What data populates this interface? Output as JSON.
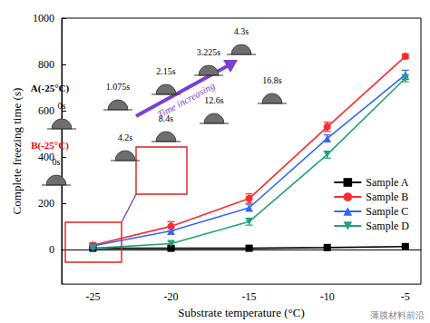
{
  "chart_data": {
    "type": "line",
    "x_label": "Substrate temperature (°C)",
    "y_label": "Complete freezing time (s)",
    "x": [
      -25,
      -20,
      -15,
      -10,
      -5
    ],
    "xlim": [
      -27,
      -4
    ],
    "xticks": [
      -25,
      -20,
      -15,
      -10,
      -5
    ],
    "ylim": [
      -150,
      1000
    ],
    "yticks": [
      0,
      200,
      400,
      600,
      800,
      1000
    ],
    "grid": false,
    "legend": "right",
    "series": [
      {
        "name": "Sample A",
        "color": "#000000",
        "marker": "square",
        "values": [
          5,
          5,
          5,
          8,
          12
        ],
        "errors": [
          2,
          2,
          2,
          2,
          2
        ]
      },
      {
        "name": "Sample B",
        "color": "#ff2a2a",
        "marker": "circle",
        "values": [
          18,
          100,
          220,
          530,
          835
        ],
        "errors": [
          10,
          20,
          20,
          20,
          10
        ]
      },
      {
        "name": "Sample C",
        "color": "#3366ff",
        "marker": "triangle",
        "values": [
          15,
          80,
          180,
          480,
          755
        ],
        "errors": [
          10,
          15,
          15,
          15,
          20
        ]
      },
      {
        "name": "Sample D",
        "color": "#1fa37a",
        "marker": "triangle-down",
        "values": [
          5,
          25,
          120,
          410,
          740
        ],
        "errors": [
          5,
          10,
          15,
          15,
          15
        ]
      }
    ],
    "annotations": [
      "A(-25°C)",
      "0s",
      "1.075s",
      "2.15s",
      "3.225s",
      "4.3s",
      "B(-25°C)",
      "0s",
      "4.2s",
      "8.4s",
      "12.6s",
      "16.8s",
      "Time increasing",
      "薄膜材料前沿"
    ]
  }
}
